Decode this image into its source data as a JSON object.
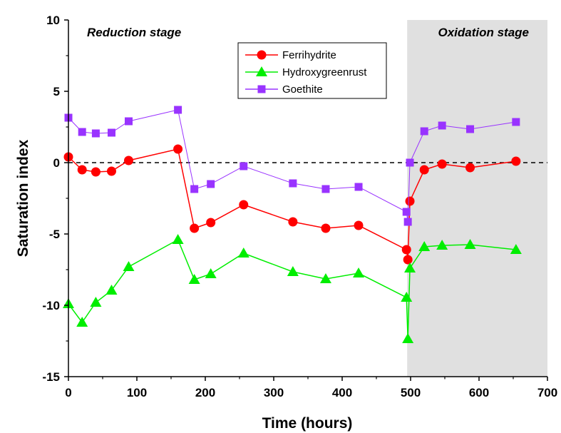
{
  "chart_data": {
    "type": "line",
    "xlabel": "Time (hours)",
    "ylabel": "Saturation index",
    "xlim": [
      0,
      700
    ],
    "ylim": [
      -15,
      10
    ],
    "x_ticks": [
      "0",
      "100",
      "200",
      "300",
      "400",
      "500",
      "600",
      "700"
    ],
    "y_ticks": [
      "-15",
      "-10",
      "-5",
      "0",
      "5",
      "10"
    ],
    "reference_line": {
      "y": 0,
      "style": "dashed",
      "color": "#000000"
    },
    "grid": false,
    "legend_position": "top-center",
    "annotations": [
      {
        "text": "Reduction stage",
        "anchor": "upper-left"
      },
      {
        "text": "Oxidation stage",
        "anchor": "upper-right"
      }
    ],
    "shaded_region": {
      "x_start": 495,
      "x_end": 700,
      "color": "#e0e0e0"
    },
    "series": [
      {
        "name": "Ferrihydrite",
        "color": "#ff0000",
        "marker": "circle",
        "x": [
          0,
          20,
          40,
          63,
          88,
          160,
          184,
          208,
          256,
          328,
          376,
          424,
          494,
          496,
          499,
          520,
          546,
          587,
          654
        ],
        "y": [
          0.4,
          -0.5,
          -0.65,
          -0.6,
          0.15,
          0.95,
          -4.6,
          -4.2,
          -2.95,
          -4.15,
          -4.6,
          -4.4,
          -6.1,
          -6.8,
          -2.7,
          -0.5,
          -0.1,
          -0.35,
          0.1
        ]
      },
      {
        "name": "Hydroxygreenrust",
        "color": "#00ee00",
        "marker": "triangle",
        "x": [
          0,
          20,
          40,
          63,
          88,
          160,
          184,
          208,
          256,
          328,
          376,
          424,
          494,
          496,
          499,
          520,
          546,
          587,
          654
        ],
        "y": [
          -9.9,
          -11.2,
          -9.8,
          -8.95,
          -7.3,
          -5.4,
          -8.2,
          -7.8,
          -6.35,
          -7.65,
          -8.15,
          -7.75,
          -9.45,
          -12.35,
          -7.4,
          -5.9,
          -5.8,
          -5.75,
          -6.1
        ]
      },
      {
        "name": "Goethite",
        "color": "#9933ff",
        "marker": "square",
        "x": [
          0,
          20,
          40,
          63,
          88,
          160,
          184,
          208,
          256,
          328,
          376,
          424,
          494,
          496,
          499,
          520,
          546,
          587,
          654
        ],
        "y": [
          3.15,
          2.15,
          2.05,
          2.1,
          2.9,
          3.7,
          -1.85,
          -1.5,
          -0.25,
          -1.45,
          -1.85,
          -1.7,
          -3.45,
          -4.15,
          0.0,
          2.2,
          2.6,
          2.35,
          2.85
        ]
      }
    ]
  }
}
